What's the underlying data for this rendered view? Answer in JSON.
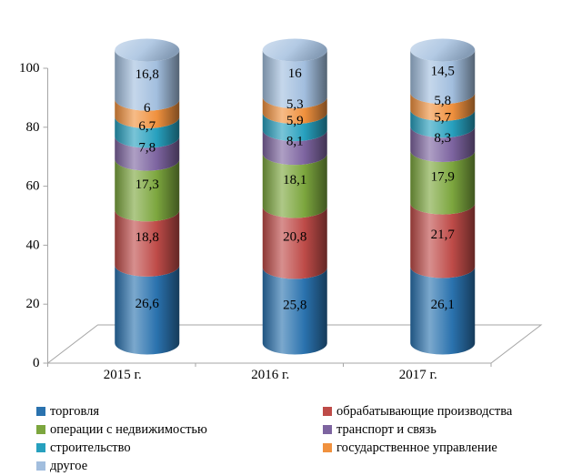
{
  "figure": {
    "background": "#ffffff",
    "axis_line_color": "#a6a6a6",
    "text_color": "#000000"
  },
  "chart_data": {
    "type": "bar",
    "subtype": "3d-cylinder-100%-stacked",
    "title": "",
    "xlabel": "",
    "ylabel": "",
    "categories": [
      "2015 г.",
      "2016 г.",
      "2017 г."
    ],
    "series": [
      {
        "name": "торговля",
        "color": "#2a72ae",
        "values": [
          26.6,
          25.8,
          26.1
        ],
        "labels": [
          "26,6",
          "25,8",
          "26,1"
        ]
      },
      {
        "name": "обрабатывающие производства",
        "color": "#be4b48",
        "values": [
          18.8,
          20.8,
          21.7
        ],
        "labels": [
          "18,8",
          "20,8",
          "21,7"
        ]
      },
      {
        "name": "операции с недвижимостью",
        "color": "#7ca63e",
        "values": [
          17.3,
          18.1,
          17.9
        ],
        "labels": [
          "17,3",
          "18,1",
          "17,9"
        ]
      },
      {
        "name": "транспорт и связь",
        "color": "#7d64a0",
        "values": [
          7.8,
          8.1,
          8.3
        ],
        "labels": [
          "7,8",
          "8,1",
          "8,3"
        ]
      },
      {
        "name": "строительство",
        "color": "#27a0be",
        "values": [
          6.7,
          5.9,
          5.7
        ],
        "labels": [
          "6,7",
          "5,9",
          "5,7"
        ]
      },
      {
        "name": "государственное управление",
        "color": "#f0913e",
        "values": [
          6,
          5.3,
          5.8
        ],
        "labels": [
          "6",
          "5,3",
          "5,8"
        ]
      },
      {
        "name": "другое",
        "color": "#a2bede",
        "values": [
          16.8,
          16,
          14.5
        ],
        "labels": [
          "16,8",
          "16",
          "14,5"
        ]
      }
    ],
    "y_axis": {
      "min": 0,
      "max": 100,
      "tick_step": 20,
      "tick_labels": [
        "0",
        "20",
        "40",
        "60",
        "80",
        "100"
      ]
    },
    "grid": false,
    "legend": {
      "position": "bottom",
      "columns": [
        [
          0,
          2,
          4,
          6
        ],
        [
          1,
          3,
          5
        ]
      ]
    }
  }
}
